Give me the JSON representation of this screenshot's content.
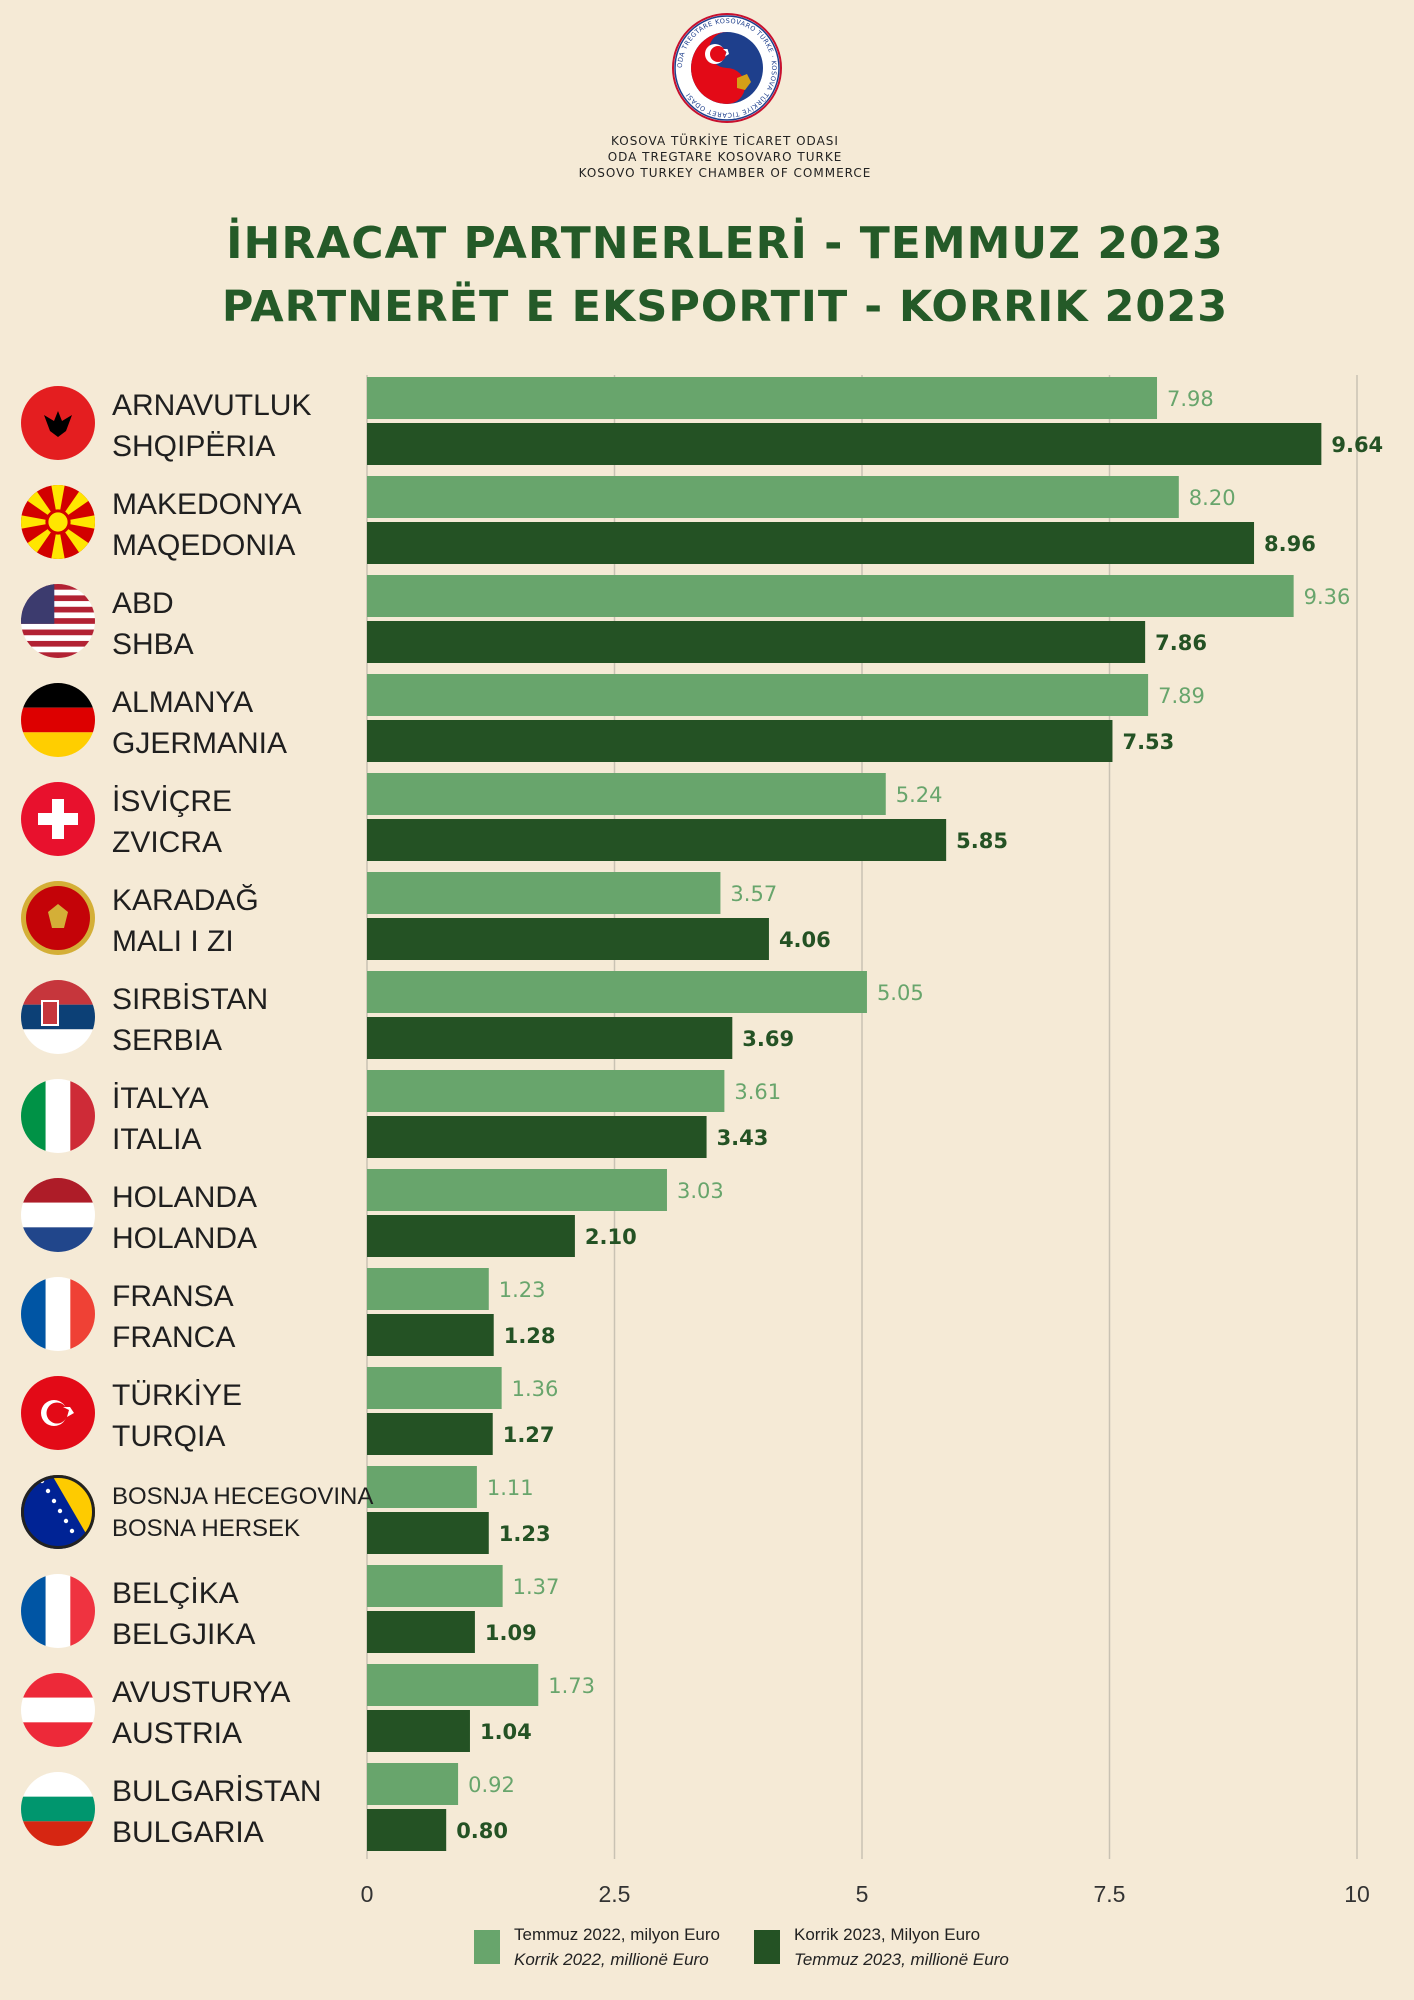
{
  "org": {
    "lines": [
      "KOSOVA TÜRKİYE TİCARET ODASI",
      "ODA TREGTARE KOSOVARO TURKE",
      "KOSOVO TURKEY CHAMBER OF COMMERCE"
    ],
    "logo_text": "ODA TREGTARE KOSOVARO TURKE · KOSOVA TÜRKİYE TİCARET ODASI"
  },
  "title": {
    "line1": "İHRACAT PARTNERLERİ - TEMMUZ 2023",
    "line2": "PARTNERËT E EKSPORTIT - KORRIK 2023"
  },
  "colors": {
    "background": "#f5ead6",
    "series_2022": "#68a56c",
    "series_2023": "#245224",
    "title": "#245a28",
    "grid": "#c9c2b3"
  },
  "chart_data": {
    "type": "bar",
    "orientation": "horizontal",
    "xlim": [
      0,
      10
    ],
    "x_ticks": [
      "0",
      "2.5",
      "5",
      "7.5",
      "10"
    ],
    "grid": true,
    "legend_position": "bottom",
    "categories": [
      {
        "tr": "ARNAVUTLUK",
        "sq": "SHQIPËRIA",
        "flag": "albania-flag-icon"
      },
      {
        "tr": "MAKEDONYA",
        "sq": "MAQEDONIA",
        "flag": "north-macedonia-flag-icon"
      },
      {
        "tr": "ABD",
        "sq": "SHBA",
        "flag": "usa-flag-icon"
      },
      {
        "tr": "ALMANYA",
        "sq": "GJERMANIA",
        "flag": "germany-flag-icon"
      },
      {
        "tr": "İSVİÇRE",
        "sq": "ZVICRA",
        "flag": "switzerland-flag-icon"
      },
      {
        "tr": "KARADAĞ",
        "sq": "MALI I ZI",
        "flag": "montenegro-flag-icon"
      },
      {
        "tr": "SIRBİSTAN",
        "sq": "SERBIA",
        "flag": "serbia-flag-icon"
      },
      {
        "tr": "İTALYA",
        "sq": "ITALIA",
        "flag": "italy-flag-icon"
      },
      {
        "tr": "HOLANDA",
        "sq": "HOLANDA",
        "flag": "netherlands-flag-icon"
      },
      {
        "tr": "FRANSA",
        "sq": "FRANCA",
        "flag": "france-flag-icon"
      },
      {
        "tr": "TÜRKİYE",
        "sq": "TURQIA",
        "flag": "turkey-flag-icon"
      },
      {
        "tr": "BOSNJA HECEGOVINA",
        "sq": "BOSNA HERSEK",
        "flag": "bosnia-flag-icon"
      },
      {
        "tr": "BELÇİKA",
        "sq": "BELGJIKA",
        "flag": "belgium-flag-icon"
      },
      {
        "tr": "AVUSTURYA",
        "sq": "AUSTRIA",
        "flag": "austria-flag-icon"
      },
      {
        "tr": "BULGARİSTAN",
        "sq": "BULGARIA",
        "flag": "bulgaria-flag-icon"
      }
    ],
    "series": [
      {
        "name": "Temmuz 2022, milyon Euro",
        "name_alt": "Korrik 2022, millionë Euro",
        "values": [
          7.98,
          8.2,
          9.36,
          7.89,
          5.24,
          3.57,
          5.05,
          3.61,
          3.03,
          1.23,
          1.36,
          1.11,
          1.37,
          1.73,
          0.92
        ],
        "labels": [
          "7.98",
          "8.20",
          "9.36",
          "7.89",
          "5.24",
          "3.57",
          "5.05",
          "3.61",
          "3.03",
          "1.23",
          "1.36",
          "1.11",
          "1.37",
          "1.73",
          "0.92"
        ]
      },
      {
        "name": "Korrik 2023, Milyon Euro",
        "name_alt": "Temmuz 2023, millionë Euro",
        "values": [
          9.64,
          8.96,
          7.86,
          7.53,
          5.85,
          4.06,
          3.69,
          3.43,
          2.1,
          1.28,
          1.27,
          1.23,
          1.09,
          1.04,
          0.8
        ],
        "labels": [
          "9.64",
          "8.96",
          "7.86",
          "7.53",
          "5.85",
          "4.06",
          "3.69",
          "3.43",
          "2.10",
          "1.28",
          "1.27",
          "1.23",
          "1.09",
          "1.04",
          "0.80"
        ]
      }
    ]
  }
}
